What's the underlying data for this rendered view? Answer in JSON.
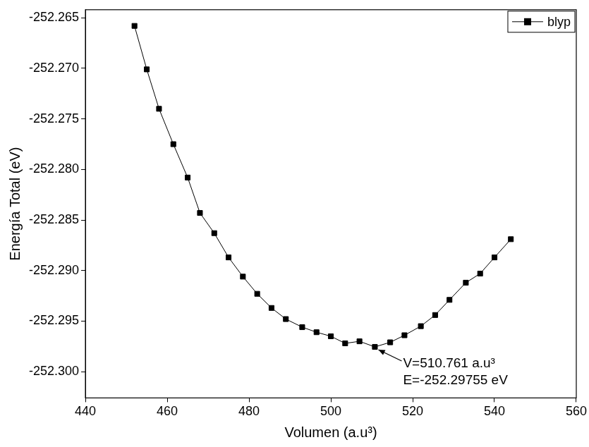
{
  "chart_data": {
    "type": "line",
    "x_label": "Volumen (a.u³)",
    "y_label": "Energía Total (eV)",
    "xlim": [
      440,
      560
    ],
    "xticks": [
      440,
      460,
      480,
      500,
      520,
      540,
      560
    ],
    "ylim": [
      -252.3026,
      -252.2642
    ],
    "yticks": [
      {
        "value": -252.3,
        "label": "-252.300"
      },
      -252.295,
      {
        "value": -252.29,
        "label": "-252.290"
      },
      -252.285,
      {
        "value": -252.28,
        "label": "-252.280"
      },
      -252.275,
      {
        "value": -252.27,
        "label": "-252.270"
      },
      -252.265
    ],
    "grid": false,
    "legend": "upper right",
    "series": [
      {
        "name": "blyp",
        "color": "#000000",
        "marker": "square",
        "line_style": "solid",
        "x": [
          452,
          455,
          458,
          461.5,
          465,
          468,
          471.5,
          475,
          478.5,
          482,
          485.5,
          489,
          493,
          496.5,
          500,
          503.5,
          507,
          510.761,
          514.5,
          518,
          522,
          525.5,
          529,
          533,
          536.5,
          540,
          544
        ],
        "values": [
          -252.2658,
          -252.2701,
          -252.274,
          -252.2775,
          -252.2808,
          -252.2843,
          -252.2863,
          -252.2887,
          -252.2906,
          -252.2923,
          -252.2937,
          -252.2948,
          -252.2956,
          -252.2961,
          -252.2965,
          -252.2972,
          -252.297,
          -252.29755,
          -252.2971,
          -252.2964,
          -252.2955,
          -252.2944,
          -252.2929,
          -252.2912,
          -252.2903,
          -252.2887,
          -252.2869
        ]
      }
    ],
    "annotation": {
      "lines": [
        "V=510.761 a.u³",
        "E=-252.29755 eV"
      ],
      "x": 510.761,
      "y": -252.29755
    }
  }
}
